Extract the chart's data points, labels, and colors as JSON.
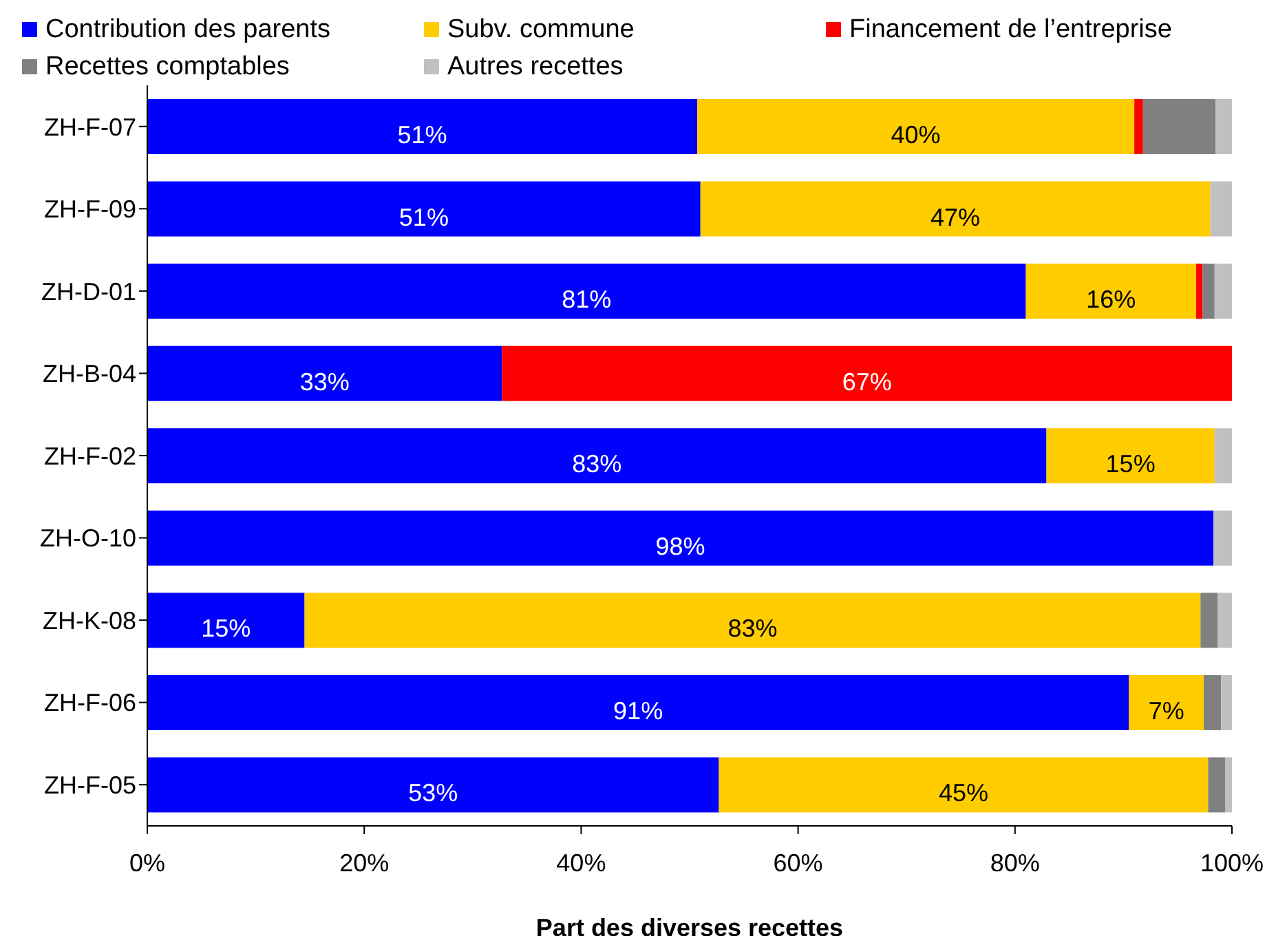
{
  "chart_data": {
    "type": "bar",
    "orientation": "horizontal",
    "stacked": true,
    "xlabel": "Part des diverses recettes",
    "categories": [
      "ZH-F-07",
      "ZH-F-09",
      "ZH-D-01",
      "ZH-B-04",
      "ZH-F-02",
      "ZH-O-10",
      "ZH-K-08",
      "ZH-F-06",
      "ZH-F-05"
    ],
    "series": [
      {
        "name": "Contribution des parents",
        "color": "#0000ff",
        "values": [
          50.7,
          51,
          81,
          32.7,
          82.9,
          98.3,
          14.5,
          90.5,
          52.7
        ],
        "value_labels": [
          "51%",
          "51%",
          "81%",
          "33%",
          "83%",
          "98%",
          "15%",
          "91%",
          "53%"
        ]
      },
      {
        "name": "Subv. commune",
        "color": "#ffcc00",
        "values": [
          40.3,
          47,
          15.7,
          0,
          15.5,
          0,
          82.6,
          6.9,
          45.1
        ],
        "value_labels": [
          "40%",
          "47%",
          "16%",
          null,
          "15%",
          null,
          "83%",
          "7%",
          "45%"
        ]
      },
      {
        "name": "Financement de l’entreprise",
        "color": "#ff0000",
        "values": [
          0.8,
          0,
          0.6,
          67.3,
          0,
          0,
          0,
          0,
          0
        ],
        "value_labels": [
          null,
          null,
          null,
          "67%",
          null,
          null,
          null,
          null,
          null
        ]
      },
      {
        "name": "Recettes comptables",
        "color": "#808080",
        "values": [
          6.7,
          0,
          1.1,
          0,
          0,
          0,
          1.6,
          1.6,
          1.6
        ]
      },
      {
        "name": "Autres recettes",
        "color": "#c0c0c0",
        "values": [
          1.5,
          2,
          1.6,
          0,
          1.6,
          1.7,
          1.3,
          1.0,
          0.6
        ]
      }
    ],
    "xlim": [
      0,
      100
    ],
    "xticks": [
      {
        "value": 0,
        "label": "0%"
      },
      {
        "value": 20,
        "label": "20%"
      },
      {
        "value": 40,
        "label": "40%"
      },
      {
        "value": 60,
        "label": "60%"
      },
      {
        "value": 80,
        "label": "80%"
      },
      {
        "value": 100,
        "label": "100%"
      }
    ],
    "grid": false,
    "legend": "top"
  }
}
